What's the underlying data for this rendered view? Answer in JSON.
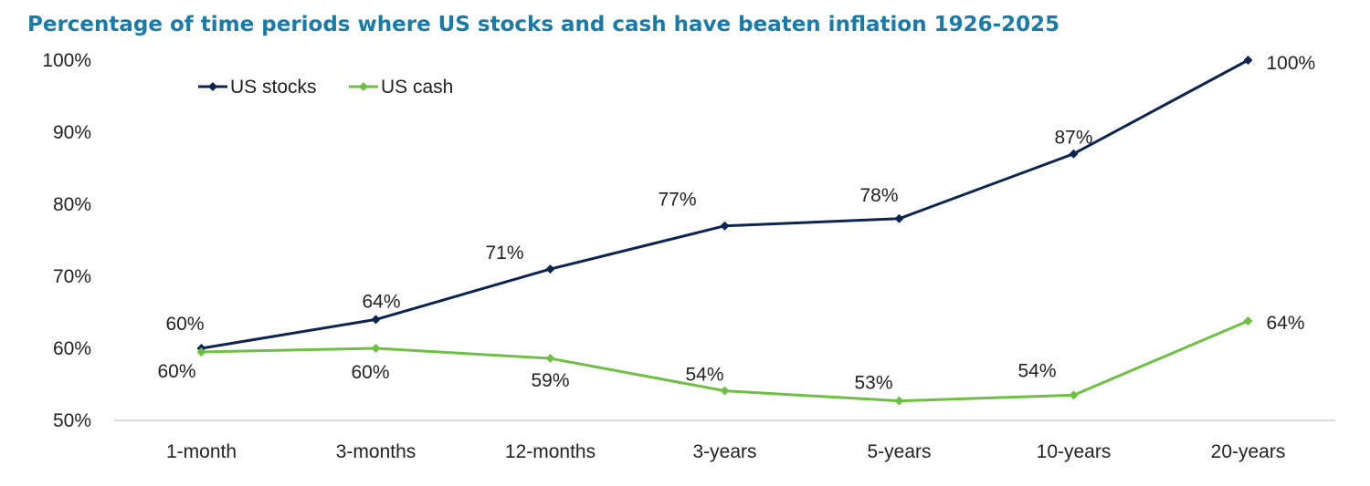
{
  "chart_data": {
    "type": "line",
    "title": "Percentage of time periods where US stocks and cash have beaten inflation 1926-2025",
    "xlabel": "",
    "ylabel": "",
    "categories": [
      "1-month",
      "3-months",
      "12-months",
      "3-years",
      "5-years",
      "10-years",
      "20-years"
    ],
    "ylim": [
      50,
      100
    ],
    "yticks": [
      50,
      60,
      70,
      80,
      90,
      100
    ],
    "ytick_labels": [
      "50%",
      "60%",
      "70%",
      "80%",
      "90%",
      "100%"
    ],
    "grid": false,
    "legend_position": "top-left",
    "series": [
      {
        "name": "US stocks",
        "color": "#0d2451",
        "values": [
          60,
          64,
          71,
          77,
          78,
          87,
          100
        ],
        "labels": [
          "60%",
          "64%",
          "71%",
          "77%",
          "78%",
          "87%",
          "100%"
        ]
      },
      {
        "name": "US cash",
        "color": "#6fbf44",
        "values": [
          59.5,
          60,
          58.6,
          54.1,
          52.7,
          53.5,
          63.8
        ],
        "labels": [
          "60%",
          "60%",
          "59%",
          "54%",
          "53%",
          "54%",
          "64%"
        ]
      }
    ]
  },
  "colors": {
    "title": "#1a7aa8",
    "axis": "#d0d0d0"
  }
}
